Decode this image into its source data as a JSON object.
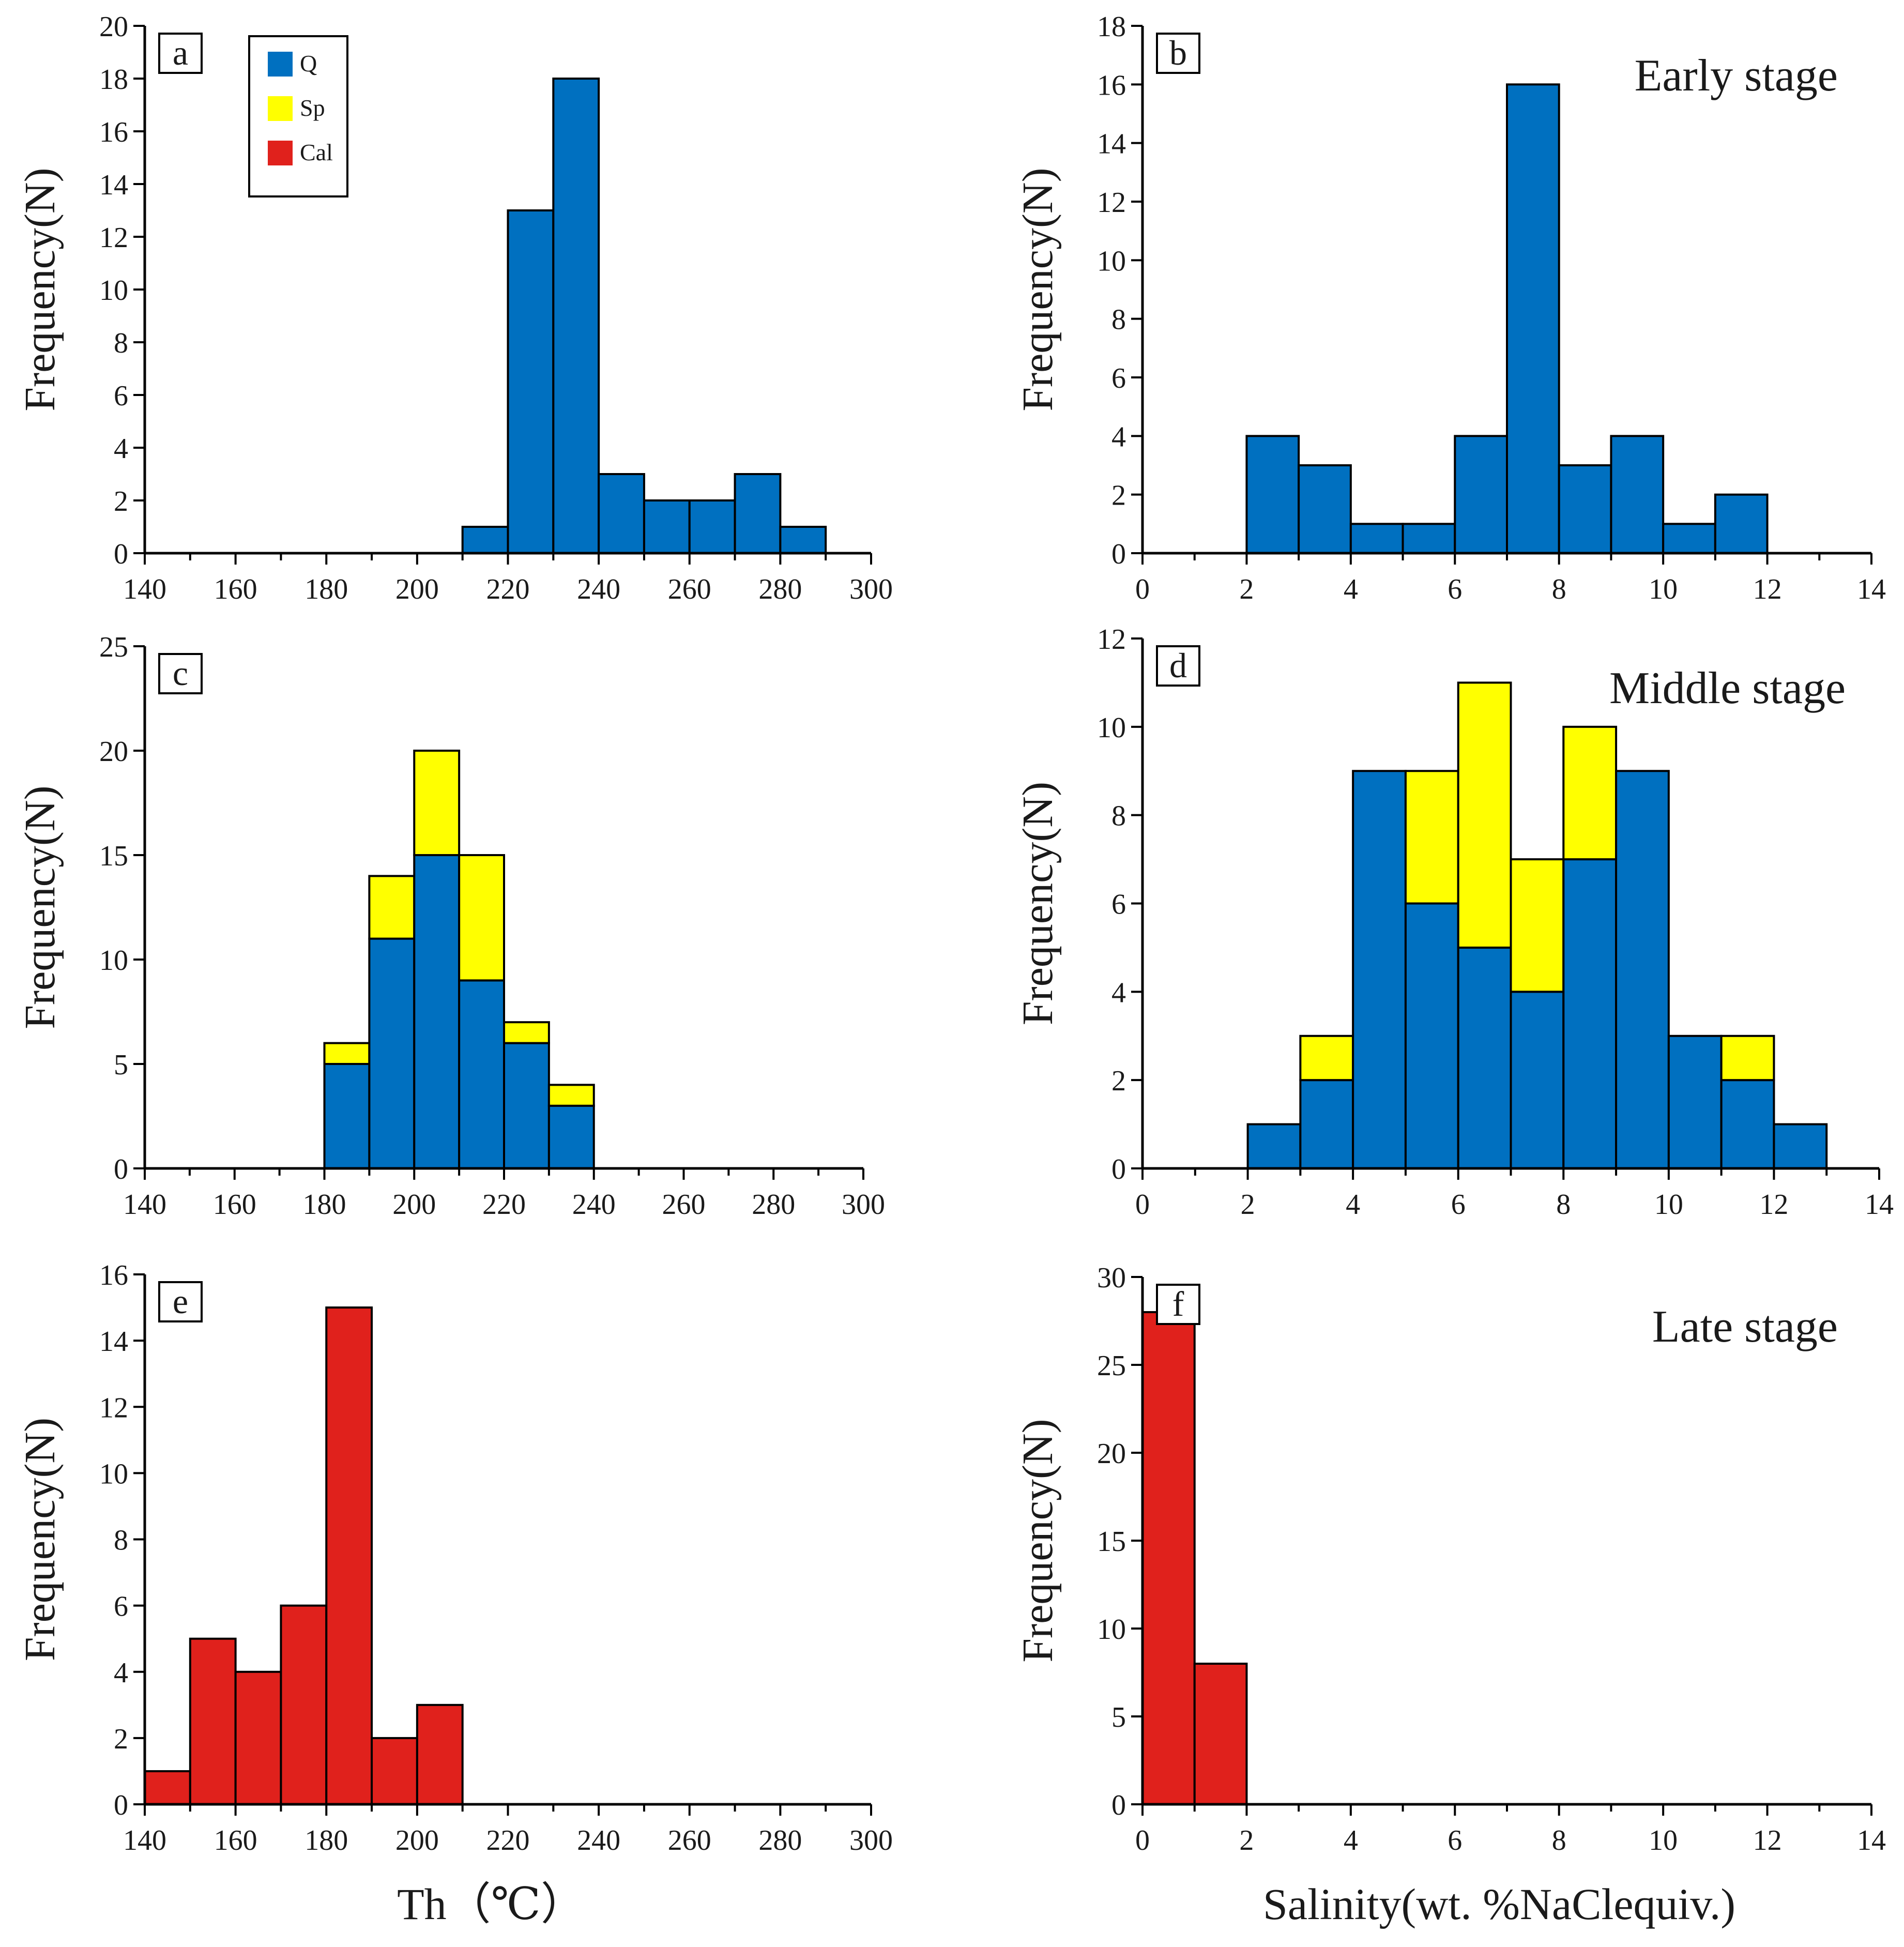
{
  "colors": {
    "Q": "#0070C0",
    "Sp": "#FFFF00",
    "Cal": "#E0211C",
    "axis": "#000000",
    "text": "#1a1a1a"
  },
  "legend": {
    "items": [
      {
        "key": "Q",
        "label": "Q"
      },
      {
        "key": "Sp",
        "label": "Sp"
      },
      {
        "key": "Cal",
        "label": "Cal"
      }
    ]
  },
  "x_titles": {
    "left": "Th（℃）",
    "right": "Salinity(wt. %NaClequiv.)"
  },
  "chart_data": [
    {
      "panel": "a",
      "type": "bar",
      "stacked": true,
      "stage": "",
      "ylabel": "Frequency(N)",
      "xlim": [
        140,
        300
      ],
      "ylim": [
        0,
        20
      ],
      "xticks": [
        140,
        160,
        180,
        200,
        220,
        240,
        260,
        280,
        300
      ],
      "yticks": [
        0,
        2,
        4,
        6,
        8,
        10,
        12,
        14,
        16,
        18,
        20
      ],
      "bin_width": 10,
      "bins": [
        210,
        220,
        230,
        240,
        250,
        260,
        270,
        280
      ],
      "series": [
        {
          "name": "Q",
          "values": [
            1,
            13,
            18,
            3,
            2,
            2,
            3,
            1
          ]
        }
      ]
    },
    {
      "panel": "b",
      "type": "bar",
      "stacked": true,
      "stage": "Early stage",
      "ylabel": "Frequency(N)",
      "xlim": [
        0,
        14
      ],
      "ylim": [
        0,
        18
      ],
      "xticks": [
        0,
        2,
        4,
        6,
        8,
        10,
        12,
        14
      ],
      "yticks": [
        0,
        2,
        4,
        6,
        8,
        10,
        12,
        14,
        16,
        18
      ],
      "bin_width": 1,
      "bins": [
        2,
        3,
        4,
        5,
        6,
        7,
        8,
        9,
        10,
        11
      ],
      "series": [
        {
          "name": "Q",
          "values": [
            4,
            3,
            1,
            1,
            4,
            16,
            3,
            4,
            1,
            2
          ]
        }
      ]
    },
    {
      "panel": "c",
      "type": "bar",
      "stacked": true,
      "stage": "",
      "ylabel": "Frequency(N)",
      "xlim": [
        140,
        300
      ],
      "ylim": [
        0,
        25
      ],
      "xticks": [
        140,
        160,
        180,
        200,
        220,
        240,
        260,
        280,
        300
      ],
      "yticks": [
        0,
        5,
        10,
        15,
        20,
        25
      ],
      "bin_width": 10,
      "bins": [
        180,
        190,
        200,
        210,
        220,
        230
      ],
      "series": [
        {
          "name": "Q",
          "values": [
            5,
            11,
            15,
            9,
            6,
            3
          ]
        },
        {
          "name": "Sp",
          "values": [
            1,
            3,
            5,
            6,
            1,
            1
          ]
        }
      ]
    },
    {
      "panel": "d",
      "type": "bar",
      "stacked": true,
      "stage": "Middle stage",
      "ylabel": "Frequency(N)",
      "xlim": [
        0,
        14
      ],
      "ylim": [
        0,
        12
      ],
      "xticks": [
        0,
        2,
        4,
        6,
        8,
        10,
        12,
        14
      ],
      "yticks": [
        0,
        2,
        4,
        6,
        8,
        10,
        12
      ],
      "bin_width": 1,
      "bins": [
        2,
        3,
        4,
        5,
        6,
        7,
        8,
        9,
        10,
        11,
        12
      ],
      "series": [
        {
          "name": "Q",
          "values": [
            1,
            2,
            9,
            6,
            5,
            4,
            7,
            9,
            3,
            2,
            1
          ]
        },
        {
          "name": "Sp",
          "values": [
            0,
            1,
            0,
            3,
            6,
            3,
            3,
            0,
            0,
            1,
            0
          ]
        }
      ]
    },
    {
      "panel": "e",
      "type": "bar",
      "stacked": true,
      "stage": "",
      "ylabel": "Frequency(N)",
      "xlim": [
        140,
        300
      ],
      "ylim": [
        0,
        16
      ],
      "xticks": [
        140,
        160,
        180,
        200,
        220,
        240,
        260,
        280,
        300
      ],
      "yticks": [
        0,
        2,
        4,
        6,
        8,
        10,
        12,
        14,
        16
      ],
      "bin_width": 10,
      "bins": [
        140,
        150,
        160,
        170,
        180,
        190,
        200
      ],
      "series": [
        {
          "name": "Cal",
          "values": [
            1,
            5,
            4,
            6,
            15,
            2,
            3
          ]
        }
      ]
    },
    {
      "panel": "f",
      "type": "bar",
      "stacked": true,
      "stage": "Late stage",
      "ylabel": "Frequency(N)",
      "xlim": [
        0,
        14
      ],
      "ylim": [
        0,
        30
      ],
      "xticks": [
        0,
        2,
        4,
        6,
        8,
        10,
        12,
        14
      ],
      "yticks": [
        0,
        5,
        10,
        15,
        20,
        25,
        30
      ],
      "bin_width": 1,
      "bins": [
        0,
        1
      ],
      "series": [
        {
          "name": "Cal",
          "values": [
            28,
            8
          ]
        }
      ]
    }
  ]
}
